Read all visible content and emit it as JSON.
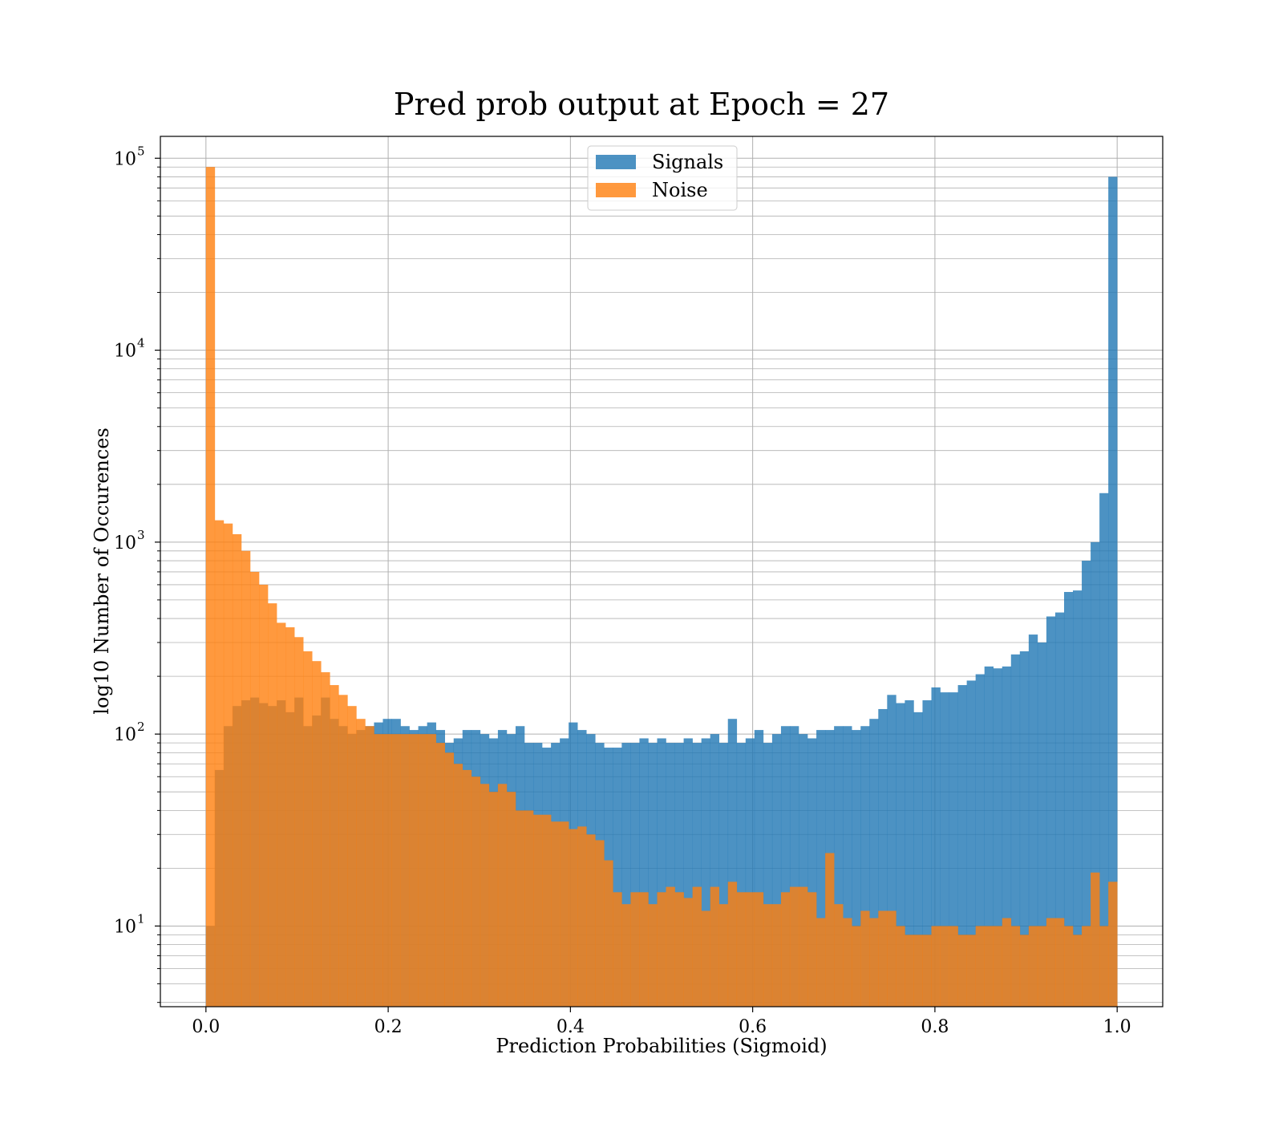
{
  "chart_data": {
    "type": "bar",
    "title": "Pred prob output at Epoch = 27",
    "xlabel": "Prediction Probabilities (Sigmoid)",
    "ylabel": "log10 Number of Occurences",
    "yscale": "log",
    "xlim": [
      -0.05,
      1.05
    ],
    "ylim": [
      3.8,
      130000
    ],
    "grid": true,
    "legend_position": "top-center",
    "bin_edges": [
      0.0,
      1.0
    ],
    "x_ticks": [
      {
        "value": 0.0,
        "label": "0.0"
      },
      {
        "value": 0.2,
        "label": "0.2"
      },
      {
        "value": 0.4,
        "label": "0.4"
      },
      {
        "value": 0.6,
        "label": "0.6"
      },
      {
        "value": 0.8,
        "label": "0.8"
      },
      {
        "value": 1.0,
        "label": "1.0"
      }
    ],
    "y_ticks": [
      {
        "value": 10,
        "base": "10",
        "exp": "1"
      },
      {
        "value": 100,
        "base": "10",
        "exp": "2"
      },
      {
        "value": 1000,
        "base": "10",
        "exp": "3"
      },
      {
        "value": 10000,
        "base": "10",
        "exp": "4"
      },
      {
        "value": 100000,
        "base": "10",
        "exp": "5"
      }
    ],
    "series": [
      {
        "name": "Signals",
        "color": "#1f77b4",
        "opacity": 0.8,
        "values": [
          10,
          65,
          110,
          140,
          150,
          155,
          145,
          140,
          150,
          130,
          155,
          110,
          125,
          155,
          120,
          110,
          100,
          105,
          110,
          115,
          120,
          120,
          110,
          105,
          110,
          115,
          105,
          90,
          95,
          105,
          105,
          100,
          95,
          105,
          100,
          110,
          90,
          90,
          85,
          90,
          95,
          115,
          105,
          100,
          90,
          85,
          85,
          90,
          90,
          95,
          90,
          95,
          90,
          90,
          95,
          90,
          95,
          100,
          90,
          120,
          90,
          95,
          105,
          90,
          100,
          110,
          110,
          100,
          95,
          105,
          105,
          110,
          110,
          105,
          110,
          120,
          135,
          160,
          145,
          150,
          130,
          150,
          175,
          165,
          165,
          180,
          190,
          205,
          225,
          220,
          225,
          260,
          270,
          330,
          300,
          410,
          430,
          550,
          560,
          800,
          1000,
          1800,
          80000
        ]
      },
      {
        "name": "Noise",
        "color": "#ff7f0e",
        "opacity": 0.8,
        "values": [
          90000,
          1300,
          1250,
          1100,
          900,
          700,
          600,
          480,
          380,
          360,
          320,
          270,
          240,
          210,
          180,
          160,
          140,
          120,
          110,
          100,
          100,
          100,
          100,
          100,
          100,
          100,
          90,
          80,
          70,
          65,
          60,
          55,
          50,
          55,
          50,
          40,
          40,
          38,
          38,
          35,
          35,
          32,
          33,
          30,
          28,
          22,
          15,
          13,
          15,
          15,
          13,
          15,
          16,
          15,
          14,
          16,
          12,
          16,
          13,
          17,
          15,
          15,
          15,
          13,
          13,
          15,
          16,
          16,
          15,
          11,
          24,
          13,
          11,
          10,
          12,
          11,
          12,
          12,
          10,
          9,
          9,
          9,
          10,
          10,
          10,
          9,
          9,
          10,
          10,
          10,
          11,
          10,
          9,
          10,
          10,
          11,
          11,
          10,
          9,
          10,
          19,
          10,
          17
        ]
      }
    ]
  }
}
